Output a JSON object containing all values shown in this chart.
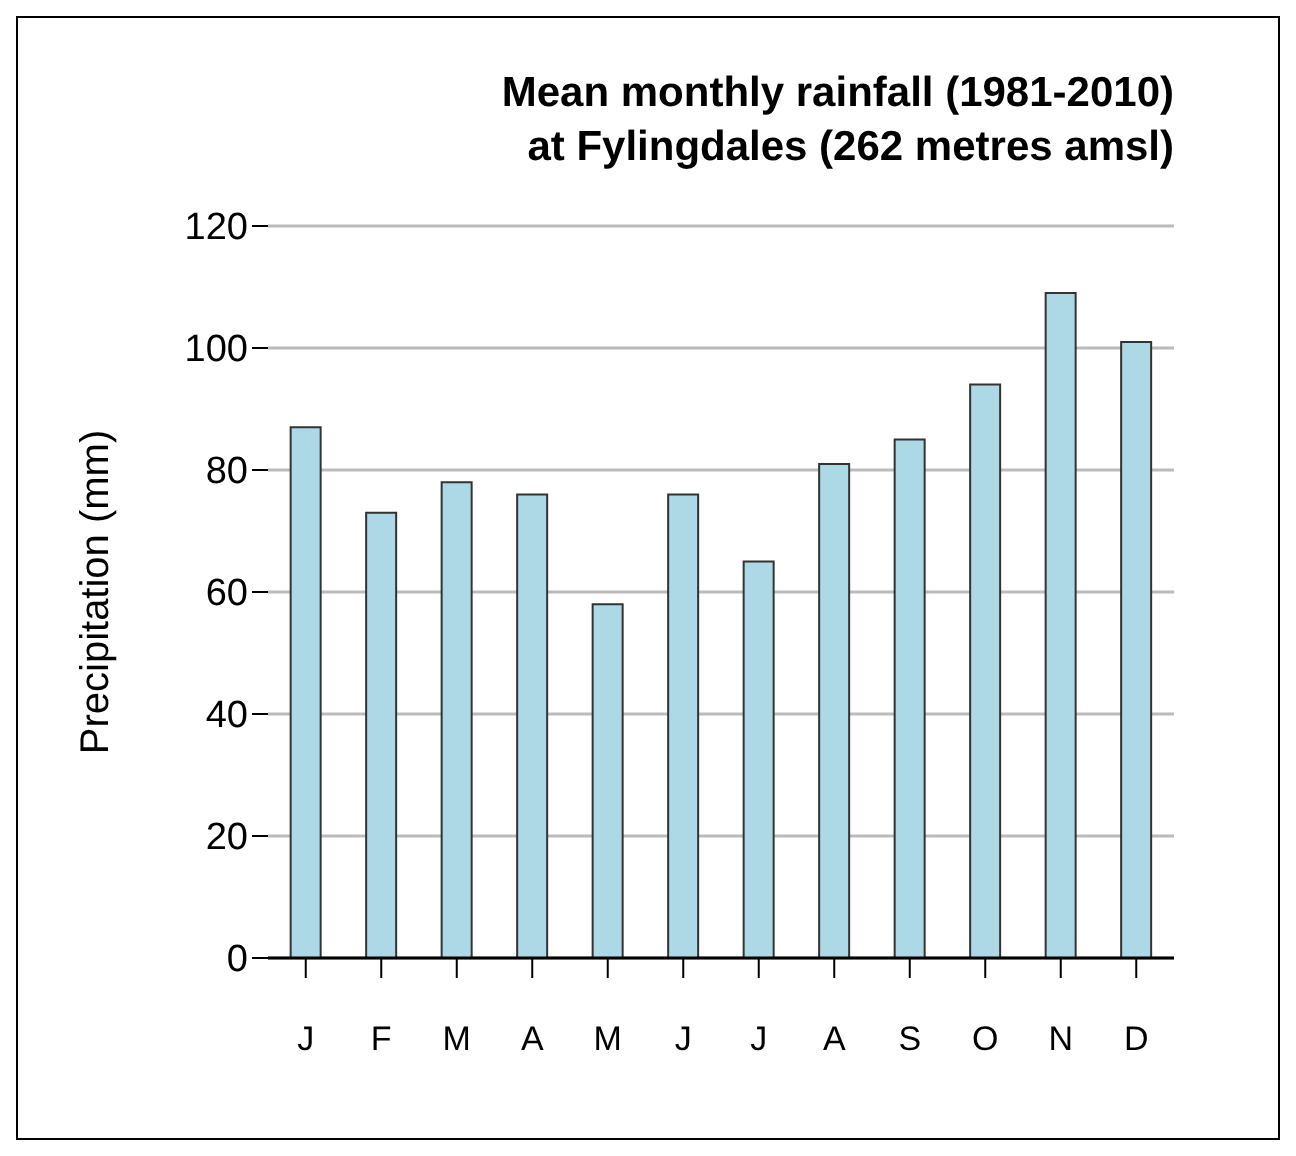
{
  "chart_data": {
    "type": "bar",
    "title": "Mean monthly rainfall (1981-2010)\nat Fylingdales (262 metres amsl)",
    "ylabel": "Precipitation (mm)",
    "categories": [
      "J",
      "F",
      "M",
      "A",
      "M",
      "J",
      "J",
      "A",
      "S",
      "O",
      "N",
      "D"
    ],
    "values": [
      87,
      73,
      78,
      76,
      58,
      76,
      65,
      81,
      85,
      94,
      109,
      101
    ],
    "color": "#add8e6",
    "ylim": [
      0,
      120
    ],
    "yticks": [
      0,
      20,
      40,
      60,
      80,
      100,
      120
    ],
    "grid": "y"
  }
}
